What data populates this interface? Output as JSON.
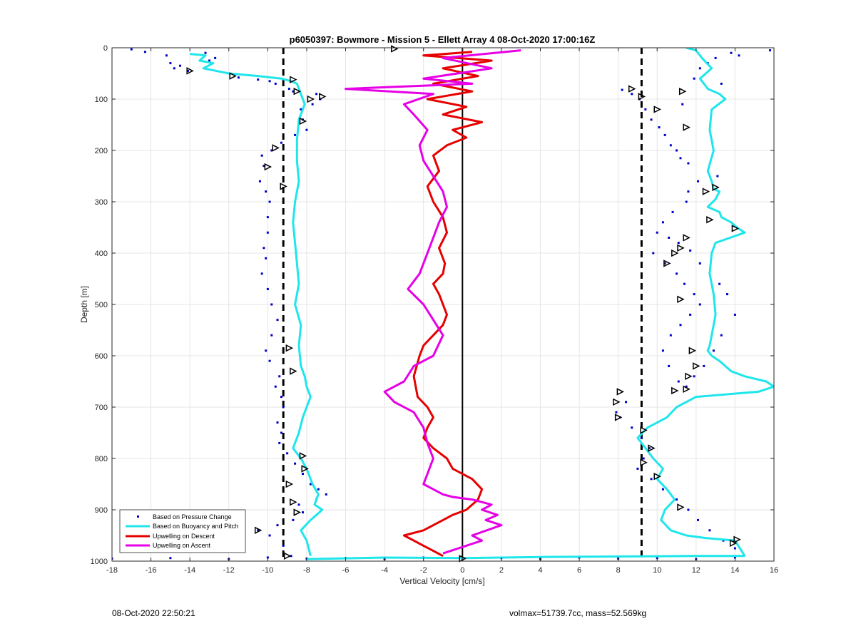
{
  "chart_data": {
    "type": "line",
    "title": "p6050397: Bowmore - Mission 5 - Ellett Array 4 08-Oct-2020 17:00:16Z",
    "xlabel": "Vertical Velocity [cm/s]",
    "ylabel": "Depth [m]",
    "xlim": [
      -18,
      16
    ],
    "ylim": [
      0,
      1000
    ],
    "y_reversed": true,
    "grid": true,
    "x_ticks": [
      -18,
      -16,
      -14,
      -12,
      -10,
      -8,
      -6,
      -4,
      -2,
      0,
      2,
      4,
      6,
      8,
      10,
      12,
      14,
      16
    ],
    "y_ticks": [
      0,
      100,
      200,
      300,
      400,
      500,
      600,
      700,
      800,
      900,
      1000
    ],
    "legend_position": "bottom-left",
    "reference_lines": [
      {
        "x": -9.2,
        "style": "dashed",
        "color": "#000000"
      },
      {
        "x": 0,
        "style": "solid",
        "color": "#000000"
      },
      {
        "x": 9.2,
        "style": "dashed",
        "color": "#000000"
      }
    ],
    "series": [
      {
        "name": "Based on Pressure Change",
        "kind": "scatter",
        "color": "#0000c8",
        "groups": [
          {
            "x": [
              -17.0,
              -16.3,
              -15.2,
              -15.0,
              -14.8,
              -14.5,
              -14.1,
              -13.2,
              -13.0,
              -12.7,
              -12.0,
              -11.5,
              -10.5,
              -9.9,
              -9.6,
              -8.9,
              -8.7,
              -7.5,
              -7.3,
              -7.7,
              -8.3,
              -8.2,
              -8.0,
              -8.6,
              -9.3,
              -9.8,
              -10.3,
              -10.2,
              -10.4,
              -10.1,
              -9.9,
              -10.0,
              -10.0,
              -10.2,
              -10.1,
              -10.3,
              -10.0,
              -9.8,
              -9.5,
              -9.8,
              -10.1,
              -9.9,
              -9.4,
              -9.6,
              -9.3,
              -9.2,
              -9.5,
              -9.3,
              -9.4,
              -9.0,
              -8.6,
              -8.2,
              -7.8,
              -7.4,
              -7.0,
              -7.5,
              -8.4,
              -8.2,
              -8.7,
              -9.5,
              -10.5,
              -9.9,
              -9.2,
              -8.8
            ],
            "y": [
              3,
              8,
              15,
              30,
              40,
              35,
              45,
              10,
              25,
              20,
              50,
              58,
              62,
              65,
              70,
              80,
              85,
              90,
              100,
              110,
              120,
              140,
              160,
              170,
              185,
              200,
              210,
              230,
              260,
              280,
              300,
              330,
              360,
              390,
              410,
              440,
              470,
              500,
              530,
              560,
              590,
              610,
              640,
              660,
              680,
              700,
              730,
              750,
              770,
              790,
              810,
              830,
              850,
              860,
              870,
              880,
              890,
              905,
              920,
              930,
              940,
              950,
              970,
              990
            ]
          },
          {
            "x": [
              8.2,
              8.7,
              9.1,
              9.4,
              9.7,
              10.1,
              10.4,
              10.7,
              11.0,
              11.2,
              11.6,
              11.3,
              11.9,
              12.2,
              12.6,
              13.0,
              13.3,
              13.8,
              14.2,
              15.8,
              13.1,
              12.1,
              11.6,
              11.5,
              10.8,
              10.3,
              10.0,
              10.6,
              11.1,
              11.7,
              12.2,
              12.7,
              13.2,
              13.6,
              14.0,
              13.3,
              12.9,
              12.4,
              11.9,
              11.5,
              11.1,
              10.6,
              10.3,
              10.7,
              11.2,
              11.7,
              12.2,
              11.9,
              11.4,
              11.0,
              10.4,
              9.8,
              8.4,
              7.9,
              8.1,
              8.7,
              9.2,
              9.6,
              9.3,
              9.0,
              9.7,
              10.3,
              11.0,
              11.6,
              12.1,
              12.7,
              13.4,
              14.0
            ],
            "y": [
              82,
              90,
              100,
              120,
              140,
              155,
              170,
              190,
              200,
              215,
              225,
              110,
              60,
              40,
              30,
              20,
              70,
              10,
              15,
              5,
              250,
              260,
              280,
              300,
              320,
              340,
              360,
              370,
              380,
              395,
              420,
              440,
              460,
              480,
              520,
              560,
              590,
              620,
              640,
              660,
              650,
              620,
              590,
              560,
              540,
              520,
              500,
              480,
              460,
              440,
              420,
              400,
              690,
              710,
              720,
              740,
              760,
              780,
              800,
              820,
              840,
              860,
              880,
              900,
              920,
              940,
              960,
              975
            ]
          },
          {
            "x": [
              -18.0,
              -15.0,
              -12.0,
              -10.0,
              -8.0,
              -6.0,
              -4.0,
              -2.0,
              0.0,
              2.0,
              4.0,
              6.0,
              8.0,
              10.0,
              12.0,
              14.0
            ],
            "y": [
              995,
              994,
              996,
              993,
              995,
              994,
              996,
              993,
              995,
              994,
              996,
              993,
              995,
              994,
              996,
              993
            ]
          }
        ]
      },
      {
        "name": "Based on Buoyancy and Pitch",
        "kind": "line",
        "color": "#1ee6eb",
        "groups": [
          {
            "x": [
              -14.0,
              -13.2,
              -13.5,
              -12.8,
              -13.3,
              -12.0,
              -10.5,
              -9.3,
              -8.8,
              -8.5,
              -8.3,
              -8.1,
              -8.4,
              -8.5,
              -8.5,
              -8.4,
              -8.6,
              -8.7,
              -8.6,
              -8.5,
              -8.4,
              -8.6,
              -8.3,
              -8.4,
              -8.3,
              -8.1,
              -8.0,
              -7.8,
              -8.0,
              -8.2,
              -8.4,
              -8.7,
              -8.3,
              -8.0,
              -7.7,
              -7.4,
              -7.6,
              -7.2,
              -7.8,
              -8.3,
              -8.0,
              -7.8
            ],
            "y": [
              12,
              15,
              25,
              30,
              40,
              50,
              55,
              60,
              65,
              70,
              90,
              110,
              140,
              180,
              220,
              260,
              300,
              340,
              380,
              420,
              460,
              500,
              540,
              580,
              620,
              640,
              660,
              680,
              700,
              720,
              750,
              780,
              800,
              820,
              850,
              870,
              890,
              900,
              920,
              940,
              960,
              990
            ]
          },
          {
            "x": [
              11.5,
              12.0,
              12.3,
              12.8,
              12.2,
              12.6,
              13.2,
              13.5,
              12.8,
              12.7,
              12.9,
              12.6,
              12.8,
              12.9,
              13.2,
              13.0,
              12.6,
              13.2,
              13.3,
              13.8,
              14.1,
              14.5,
              13.0,
              12.8,
              12.7,
              12.9,
              13.0,
              12.8,
              12.7,
              12.6,
              12.8,
              13.2,
              13.5,
              13.8,
              14.5,
              15.6,
              16.0,
              15.2,
              12.0,
              11.0,
              10.5,
              9.5,
              9.0,
              9.4,
              9.8,
              10.3,
              10.0,
              10.5,
              10.9,
              10.4,
              10.2,
              10.7,
              11.5,
              12.5,
              14.0,
              14.5
            ],
            "y": [
              0,
              5,
              20,
              40,
              60,
              80,
              90,
              100,
              120,
              160,
              200,
              240,
              260,
              275,
              280,
              295,
              310,
              320,
              330,
              340,
              350,
              360,
              380,
              400,
              440,
              480,
              520,
              560,
              580,
              590,
              600,
              610,
              620,
              630,
              640,
              650,
              660,
              670,
              680,
              700,
              720,
              740,
              760,
              780,
              800,
              820,
              840,
              860,
              880,
              900,
              920,
              940,
              950,
              955,
              960,
              990
            ]
          },
          {
            "x": [
              -8.0,
              -4.0,
              0.0,
              4.0,
              8.0,
              12.0,
              14.5
            ],
            "y": [
              996,
              993,
              994,
              992,
              991,
              990,
              990
            ]
          }
        ]
      },
      {
        "name": "Upwelling on Descent",
        "kind": "line",
        "color": "#e60000",
        "groups": [
          {
            "x": [
              0.5,
              -2.0,
              1.5,
              -1.0,
              0.8,
              -1.5,
              0.5,
              -1.8,
              0.2,
              -1.0,
              1.0,
              -0.5,
              0.2,
              -0.8,
              -1.5,
              -1.2,
              -1.8,
              -1.5,
              -1.0,
              -0.8,
              -1.2,
              -0.9,
              -1.0,
              -1.5,
              -1.2,
              -1.0,
              -0.8,
              -1.0,
              -1.5,
              -2.0,
              -2.2,
              -2.5,
              -2.3,
              -1.8,
              -1.5,
              -1.8,
              -2.0,
              -1.5,
              -0.8,
              -0.5,
              0.5,
              1.0,
              0.8,
              0.2,
              -0.5,
              -1.0,
              -1.5,
              -2.0,
              -3.0,
              -2.5,
              -2.0,
              -1.5,
              -1.0
            ],
            "y": [
              8,
              15,
              25,
              40,
              55,
              70,
              85,
              100,
              115,
              130,
              145,
              160,
              175,
              190,
              210,
              240,
              270,
              300,
              330,
              360,
              390,
              420,
              440,
              460,
              480,
              500,
              520,
              540,
              560,
              580,
              600,
              640,
              680,
              700,
              720,
              740,
              760,
              780,
              800,
              820,
              840,
              860,
              880,
              900,
              910,
              920,
              930,
              940,
              950,
              960,
              970,
              980,
              990
            ]
          }
        ]
      },
      {
        "name": "Upwelling on Ascent",
        "kind": "line",
        "color": "#e600e6",
        "groups": [
          {
            "x": [
              3.0,
              -1.0,
              1.5,
              -2.0,
              0.5,
              -6.0,
              -1.5,
              -3.0,
              -2.5,
              -1.8,
              -2.2,
              -2.0,
              -1.5,
              -1.0,
              -0.8,
              -1.2,
              -1.5,
              -1.8,
              -2.2,
              -2.8,
              -2.0,
              -1.5,
              -1.0,
              -1.5,
              -2.5,
              -3.0,
              -4.0,
              -3.5,
              -2.5,
              -2.0,
              -1.8,
              -1.5,
              -1.8,
              -2.0,
              -1.5,
              -1.0,
              -0.5,
              0.5,
              1.5,
              1.0,
              1.8,
              1.2,
              2.0,
              0.5,
              1.0,
              -1.0
            ],
            "y": [
              5,
              20,
              40,
              60,
              70,
              80,
              90,
              110,
              130,
              160,
              190,
              220,
              250,
              280,
              310,
              340,
              370,
              400,
              440,
              470,
              500,
              530,
              560,
              600,
              620,
              650,
              670,
              690,
              710,
              740,
              770,
              800,
              830,
              850,
              860,
              870,
              875,
              880,
              890,
              900,
              910,
              920,
              930,
              950,
              960,
              985
            ]
          }
        ]
      }
    ],
    "markers": {
      "description": "triangle markers",
      "x": [
        -3.5,
        -14.0,
        -11.8,
        -8.7,
        -8.5,
        -7.8,
        -7.2,
        -8.2,
        -10.0,
        -9.2,
        -9.6,
        -8.9,
        -8.7,
        -8.2,
        -8.1,
        -8.9,
        -8.7,
        -8.5,
        -10.5,
        -9.0,
        0.0,
        8.7,
        11.3,
        9.2,
        10.0,
        11.5,
        12.5,
        13.0,
        12.7,
        14.0,
        11.5,
        11.2,
        10.9,
        10.5,
        11.2,
        11.8,
        12.0,
        11.6,
        11.5,
        10.9,
        9.3,
        9.7,
        9.3,
        10.0,
        11.2,
        8.1,
        7.9,
        8.0,
        14.1,
        13.9
      ],
      "y": [
        2,
        45,
        55,
        62,
        85,
        100,
        95,
        143,
        232,
        270,
        195,
        585,
        630,
        795,
        820,
        850,
        885,
        905,
        940,
        990,
        995,
        80,
        85,
        95,
        120,
        155,
        280,
        272,
        335,
        352,
        370,
        390,
        400,
        420,
        490,
        590,
        620,
        640,
        665,
        668,
        745,
        780,
        808,
        835,
        895,
        670,
        690,
        720,
        958,
        965
      ]
    }
  },
  "legend": {
    "items": [
      {
        "label": "Based on Pressure Change"
      },
      {
        "label": "Based on Buoyancy and Pitch"
      },
      {
        "label": "Upwelling on Descent"
      },
      {
        "label": "Upwelling on Ascent"
      }
    ]
  },
  "footer": {
    "left": "08-Oct-2020 22:50:21",
    "right": "volmax=51739.7cc, mass=52.569kg"
  },
  "colors": {
    "pressure": "#0000c8",
    "buoyancy": "#1ee6eb",
    "descent": "#e60000",
    "ascent": "#e600e6",
    "grid": "#e5e5e5",
    "axis": "#262626"
  }
}
